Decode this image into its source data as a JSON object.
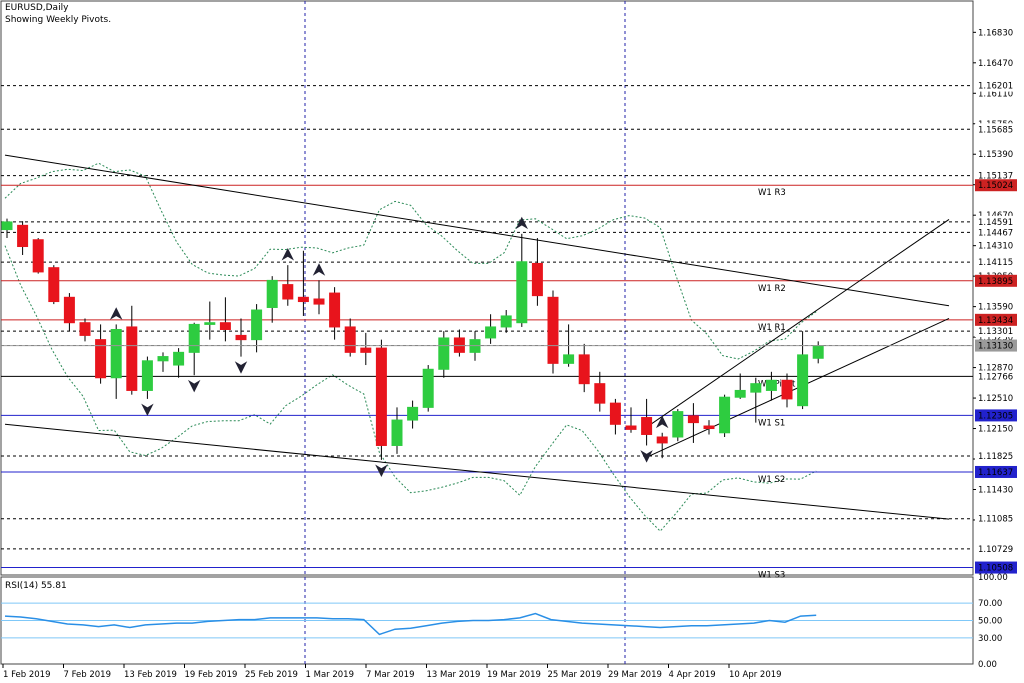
{
  "header": {
    "symbol": "EURUSD,Daily",
    "subtitle": "Showing Weekly Pivots."
  },
  "rsi_header": "RSI(14) 55.81",
  "colors": {
    "bull": "#2ecc40",
    "bear": "#e8141c",
    "pivot_support": "#2222cc",
    "pivot_resistance": "#cc2222",
    "trendline": "#000000",
    "bands": "#2b8a57",
    "rsi_line": "#2a8fe6",
    "rsi_level": "#7fc8f8",
    "grid": "#2222aa",
    "label_bg": "#000000"
  },
  "chart_data": {
    "type": "candlestick",
    "main": {
      "price_ticks": [
        "1.16830",
        "1.16470",
        "1.16110",
        "1.15750",
        "1.15390",
        "1.15030",
        "1.14670",
        "1.14310",
        "1.13950",
        "1.13590",
        "1.13230",
        "1.12870",
        "1.12510",
        "1.12150",
        "1.11790",
        "1.11430",
        "1.11070"
      ],
      "ylim": [
        1.1042,
        1.172
      ],
      "x_dates": [
        "1 Feb 2019",
        "7 Feb 2019",
        "13 Feb 2019",
        "19 Feb 2019",
        "25 Feb 2019",
        "1 Mar 2019",
        "7 Mar 2019",
        "13 Mar 2019",
        "19 Mar 2019",
        "25 Mar 2019",
        "29 Mar 2019",
        "4 Apr 2019",
        "10 Apr 2019"
      ],
      "pivots": [
        {
          "label": "W1 R3",
          "value": "1.15024",
          "type": "resistance"
        },
        {
          "label": "W1 R2",
          "value": "1.13895",
          "type": "resistance"
        },
        {
          "label": "W1 R1",
          "value": "1.13434",
          "type": "resistance"
        },
        {
          "label": "W1 Pivot",
          "value": "1.12766",
          "type": "pivot"
        },
        {
          "label": "W1 S1",
          "value": "1.12305",
          "type": "support"
        },
        {
          "label": "W1 S2",
          "value": "1.11637",
          "type": "support"
        },
        {
          "label": "W1 S3",
          "value": "1.10508",
          "type": "support"
        }
      ],
      "level_labels": [
        "1.16201",
        "1.15685",
        "1.15137",
        "1.14591",
        "1.14467",
        "1.14115",
        "1.13301",
        "1.13131",
        "1.11825",
        "1.11085",
        "1.10729"
      ],
      "candles": [
        {
          "o": 1.145,
          "h": 1.1463,
          "l": 1.144,
          "c": 1.1459
        },
        {
          "o": 1.1455,
          "h": 1.146,
          "l": 1.142,
          "c": 1.143
        },
        {
          "o": 1.1438,
          "h": 1.144,
          "l": 1.1398,
          "c": 1.14
        },
        {
          "o": 1.1405,
          "h": 1.1408,
          "l": 1.1362,
          "c": 1.1365
        },
        {
          "o": 1.137,
          "h": 1.1375,
          "l": 1.133,
          "c": 1.134
        },
        {
          "o": 1.134,
          "h": 1.1345,
          "l": 1.1318,
          "c": 1.1325
        },
        {
          "o": 1.132,
          "h": 1.1338,
          "l": 1.1268,
          "c": 1.1275
        },
        {
          "o": 1.1275,
          "h": 1.1338,
          "l": 1.125,
          "c": 1.1332
        },
        {
          "o": 1.1335,
          "h": 1.136,
          "l": 1.1255,
          "c": 1.126
        },
        {
          "o": 1.126,
          "h": 1.13,
          "l": 1.125,
          "c": 1.1295
        },
        {
          "o": 1.1295,
          "h": 1.1305,
          "l": 1.1282,
          "c": 1.13
        },
        {
          "o": 1.129,
          "h": 1.131,
          "l": 1.1275,
          "c": 1.1305
        },
        {
          "o": 1.1305,
          "h": 1.134,
          "l": 1.1278,
          "c": 1.1338
        },
        {
          "o": 1.1338,
          "h": 1.1365,
          "l": 1.132,
          "c": 1.134
        },
        {
          "o": 1.134,
          "h": 1.137,
          "l": 1.1318,
          "c": 1.1332
        },
        {
          "o": 1.1325,
          "h": 1.1345,
          "l": 1.13,
          "c": 1.132
        },
        {
          "o": 1.132,
          "h": 1.1362,
          "l": 1.1305,
          "c": 1.1355
        },
        {
          "o": 1.1358,
          "h": 1.1395,
          "l": 1.134,
          "c": 1.139
        },
        {
          "o": 1.1385,
          "h": 1.1408,
          "l": 1.136,
          "c": 1.1368
        },
        {
          "o": 1.137,
          "h": 1.1425,
          "l": 1.1348,
          "c": 1.1365
        },
        {
          "o": 1.1368,
          "h": 1.139,
          "l": 1.135,
          "c": 1.1362
        },
        {
          "o": 1.1375,
          "h": 1.1382,
          "l": 1.132,
          "c": 1.1335
        },
        {
          "o": 1.1335,
          "h": 1.1345,
          "l": 1.13,
          "c": 1.1305
        },
        {
          "o": 1.131,
          "h": 1.1328,
          "l": 1.129,
          "c": 1.1305
        },
        {
          "o": 1.131,
          "h": 1.132,
          "l": 1.1178,
          "c": 1.1195
        },
        {
          "o": 1.1195,
          "h": 1.124,
          "l": 1.1185,
          "c": 1.1225
        },
        {
          "o": 1.1225,
          "h": 1.1248,
          "l": 1.1215,
          "c": 1.124
        },
        {
          "o": 1.124,
          "h": 1.129,
          "l": 1.1235,
          "c": 1.1285
        },
        {
          "o": 1.1285,
          "h": 1.133,
          "l": 1.1275,
          "c": 1.1322
        },
        {
          "o": 1.1322,
          "h": 1.1332,
          "l": 1.13,
          "c": 1.1305
        },
        {
          "o": 1.1305,
          "h": 1.133,
          "l": 1.1295,
          "c": 1.132
        },
        {
          "o": 1.1322,
          "h": 1.135,
          "l": 1.1315,
          "c": 1.1335
        },
        {
          "o": 1.1335,
          "h": 1.1355,
          "l": 1.1328,
          "c": 1.1348
        },
        {
          "o": 1.134,
          "h": 1.1445,
          "l": 1.1335,
          "c": 1.1412
        },
        {
          "o": 1.141,
          "h": 1.144,
          "l": 1.136,
          "c": 1.1372
        },
        {
          "o": 1.137,
          "h": 1.1378,
          "l": 1.128,
          "c": 1.1292
        },
        {
          "o": 1.1292,
          "h": 1.1338,
          "l": 1.1288,
          "c": 1.1302
        },
        {
          "o": 1.1302,
          "h": 1.1315,
          "l": 1.1258,
          "c": 1.1268
        },
        {
          "o": 1.1268,
          "h": 1.1282,
          "l": 1.1235,
          "c": 1.1245
        },
        {
          "o": 1.1245,
          "h": 1.125,
          "l": 1.1208,
          "c": 1.122
        },
        {
          "o": 1.1218,
          "h": 1.124,
          "l": 1.121,
          "c": 1.1214
        },
        {
          "o": 1.1228,
          "h": 1.125,
          "l": 1.1195,
          "c": 1.1208
        },
        {
          "o": 1.1205,
          "h": 1.121,
          "l": 1.118,
          "c": 1.1198
        },
        {
          "o": 1.1205,
          "h": 1.1238,
          "l": 1.12,
          "c": 1.1235
        },
        {
          "o": 1.123,
          "h": 1.1245,
          "l": 1.1198,
          "c": 1.1222
        },
        {
          "o": 1.1218,
          "h": 1.1225,
          "l": 1.1208,
          "c": 1.1215
        },
        {
          "o": 1.121,
          "h": 1.1255,
          "l": 1.1205,
          "c": 1.1252
        },
        {
          "o": 1.1252,
          "h": 1.128,
          "l": 1.125,
          "c": 1.126
        },
        {
          "o": 1.1258,
          "h": 1.1275,
          "l": 1.1222,
          "c": 1.1268
        },
        {
          "o": 1.126,
          "h": 1.1282,
          "l": 1.1248,
          "c": 1.1272
        },
        {
          "o": 1.1272,
          "h": 1.128,
          "l": 1.124,
          "c": 1.125
        },
        {
          "o": 1.1242,
          "h": 1.133,
          "l": 1.1238,
          "c": 1.1302
        },
        {
          "o": 1.1298,
          "h": 1.1318,
          "l": 1.1292,
          "c": 1.1313
        }
      ],
      "trendlines": [
        {
          "name": "upper-channel-line",
          "from": {
            "i": 0,
            "v": 1.1538
          },
          "to": {
            "i": 60,
            "v": 1.136
          }
        },
        {
          "name": "lower-channel-line",
          "from": {
            "i": 0,
            "v": 1.122
          },
          "to": {
            "i": 60,
            "v": 1.1108
          }
        },
        {
          "name": "rising-channel-top",
          "from": {
            "i": 41,
            "v": 1.1215
          },
          "to": {
            "i": 60,
            "v": 1.1462
          }
        },
        {
          "name": "rising-channel-bottom",
          "from": {
            "i": 41,
            "v": 1.118
          },
          "to": {
            "i": 60,
            "v": 1.1345
          }
        }
      ]
    },
    "rsi": {
      "period": 14,
      "value": 55.81,
      "ticks": [
        "100.00",
        "70.00",
        "50.00",
        "30.00",
        "0.00"
      ],
      "levels": [
        70,
        50,
        30
      ],
      "ylim": [
        0,
        100
      ],
      "values": [
        55,
        54,
        52,
        49,
        46,
        45,
        43,
        45,
        42,
        45,
        46,
        47,
        47,
        49,
        50,
        51,
        51,
        53,
        53,
        53,
        53,
        52,
        52,
        51,
        34,
        40,
        41,
        44,
        47,
        49,
        50,
        50,
        51,
        53,
        58,
        51,
        49,
        47,
        46,
        45,
        44,
        43,
        42,
        43,
        44,
        44,
        45,
        46,
        47,
        50,
        48,
        55,
        56
      ]
    }
  }
}
